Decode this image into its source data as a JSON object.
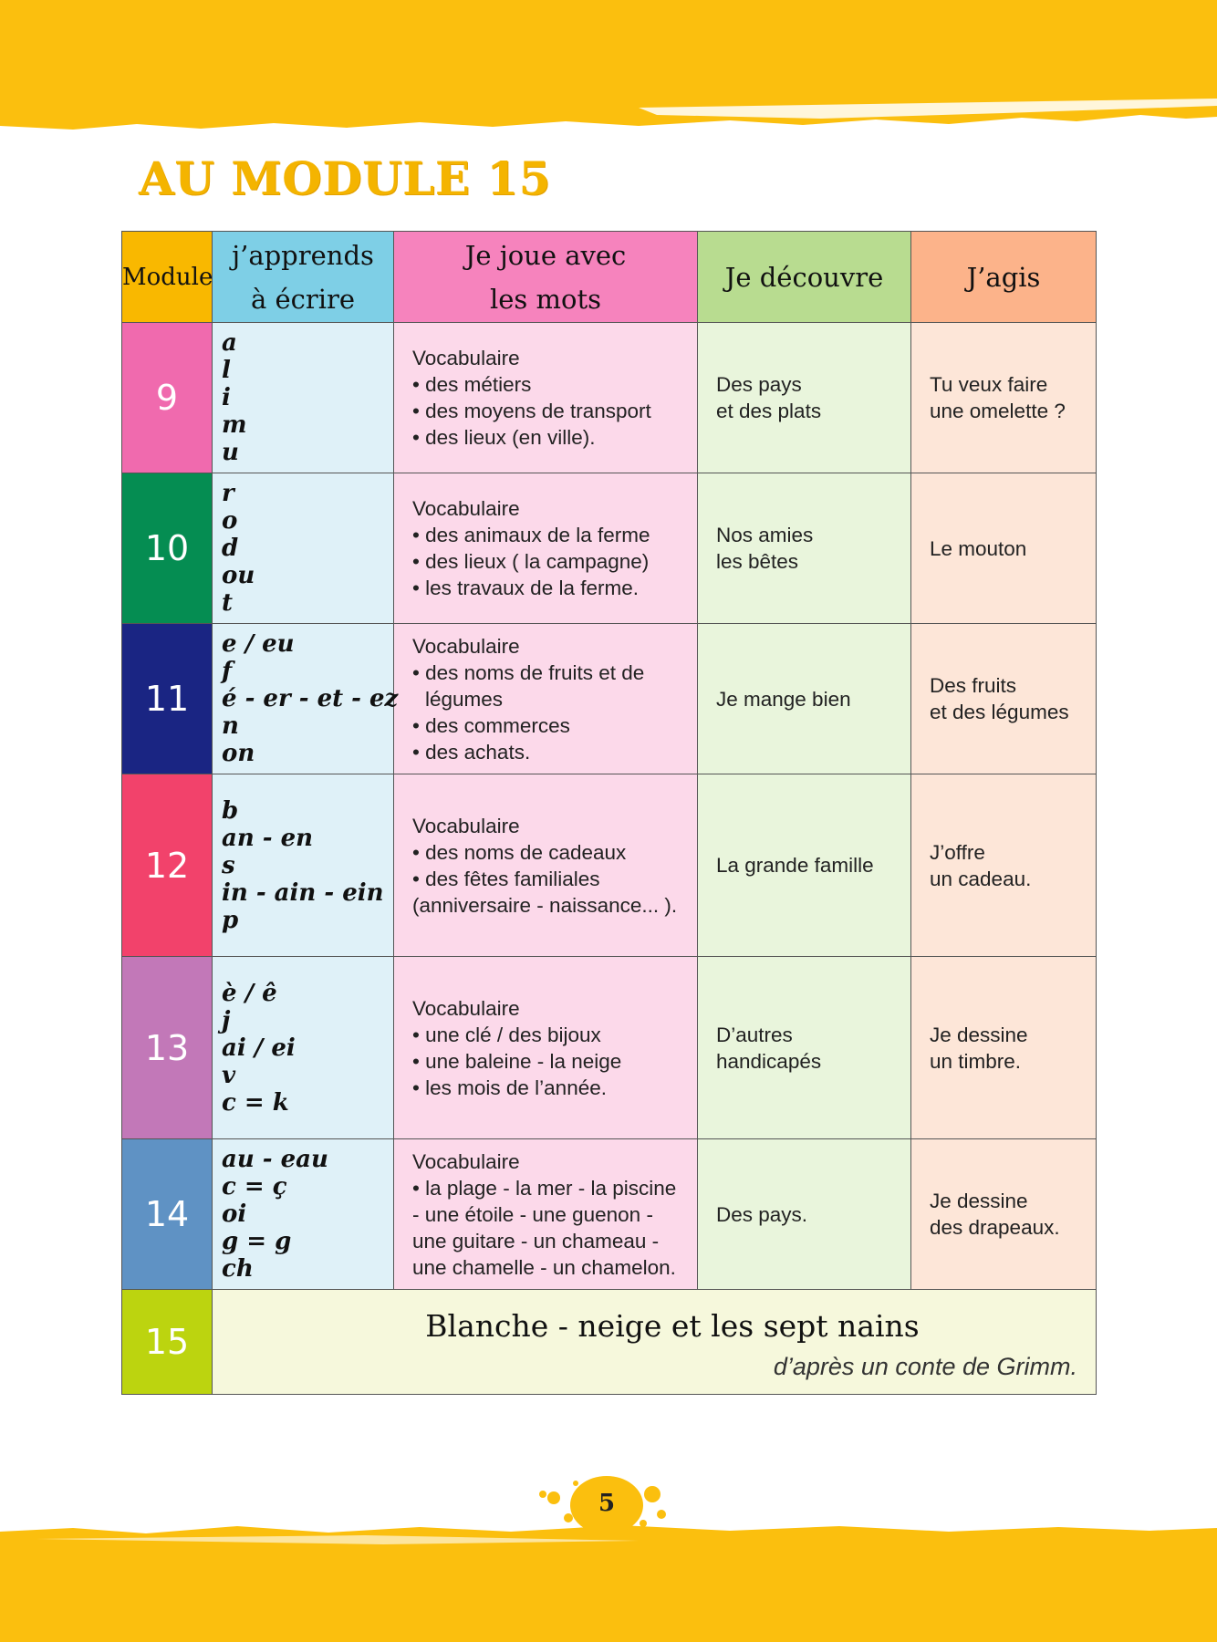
{
  "title": "AU MODULE 15",
  "colors": {
    "band": "#fbbf0e",
    "title": "#f4b400"
  },
  "headers": {
    "module": "Module",
    "ecrire": [
      "j’apprends",
      "à écrire"
    ],
    "mots": [
      "Je joue avec",
      "les mots"
    ],
    "decouvre": "Je découvre",
    "agis": "J’agis"
  },
  "rows": [
    {
      "module": "9",
      "color": "#f06aae",
      "letters": [
        "a",
        "l",
        "i",
        "m",
        "u"
      ],
      "vocab": [
        "Vocabulaire",
        "• des métiers",
        "• des moyens de transport",
        "• des lieux (en ville)."
      ],
      "decouvre": [
        "Des pays",
        "et des plats"
      ],
      "agis": [
        "Tu veux faire",
        "une omelette ?"
      ]
    },
    {
      "module": "10",
      "color": "#058d52",
      "letters": [
        "r",
        "o",
        "d",
        "ou",
        "t"
      ],
      "vocab": [
        "Vocabulaire",
        "• des animaux de la ferme",
        "• des lieux  ( la campagne)",
        "• les travaux de la ferme."
      ],
      "decouvre": [
        "Nos amies",
        "les bêtes"
      ],
      "agis": [
        "Le mouton"
      ]
    },
    {
      "module": "11",
      "color": "#1a2583",
      "letters": [
        "e  /  eu",
        "f",
        "é - er - et - ez",
        "n",
        "on"
      ],
      "vocab": [
        "Vocabulaire",
        "• des noms de fruits et de",
        "légumes",
        "• des commerces",
        "• des achats."
      ],
      "decouvre": [
        "Je mange bien"
      ],
      "agis": [
        "Des fruits",
        "et des légumes"
      ]
    },
    {
      "module": "12",
      "color": "#f2426b",
      "letters": [
        "b",
        "an - en",
        "s",
        "in - ain - ein",
        "p"
      ],
      "vocab": [
        "Vocabulaire",
        "• des noms de cadeaux",
        "• des fêtes familiales",
        "(anniversaire - naissance... )."
      ],
      "decouvre": [
        "La grande famille"
      ],
      "agis": [
        "J’offre",
        "un cadeau."
      ]
    },
    {
      "module": "13",
      "color": "#c278b8",
      "letters": [
        "è  /  ê",
        "j",
        "ai / ei",
        "v",
        "c = k"
      ],
      "vocab": [
        "Vocabulaire",
        "• une clé / des bijoux",
        "• une baleine - la neige",
        "• les mois de l’année."
      ],
      "decouvre": [
        "D’autres",
        "handicapés"
      ],
      "agis": [
        "Je dessine",
        "un timbre."
      ]
    },
    {
      "module": "14",
      "color": "#5f92c4",
      "letters": [
        "au - eau",
        "c = ç",
        "oi",
        "g = g",
        "ch"
      ],
      "vocab": [
        "Vocabulaire",
        "• la plage - la mer - la piscine",
        "- une étoile - une guenon -",
        "une guitare - un chameau -",
        "une chamelle - un chamelon."
      ],
      "decouvre": [
        "Des pays."
      ],
      "agis": [
        "Je dessine",
        "des drapeaux."
      ]
    }
  ],
  "final": {
    "module": "15",
    "color": "#bcd40f",
    "story_title": "Blanche - neige et les sept nains",
    "story_subtitle": "d’après un conte de Grimm."
  },
  "page_number": "5"
}
